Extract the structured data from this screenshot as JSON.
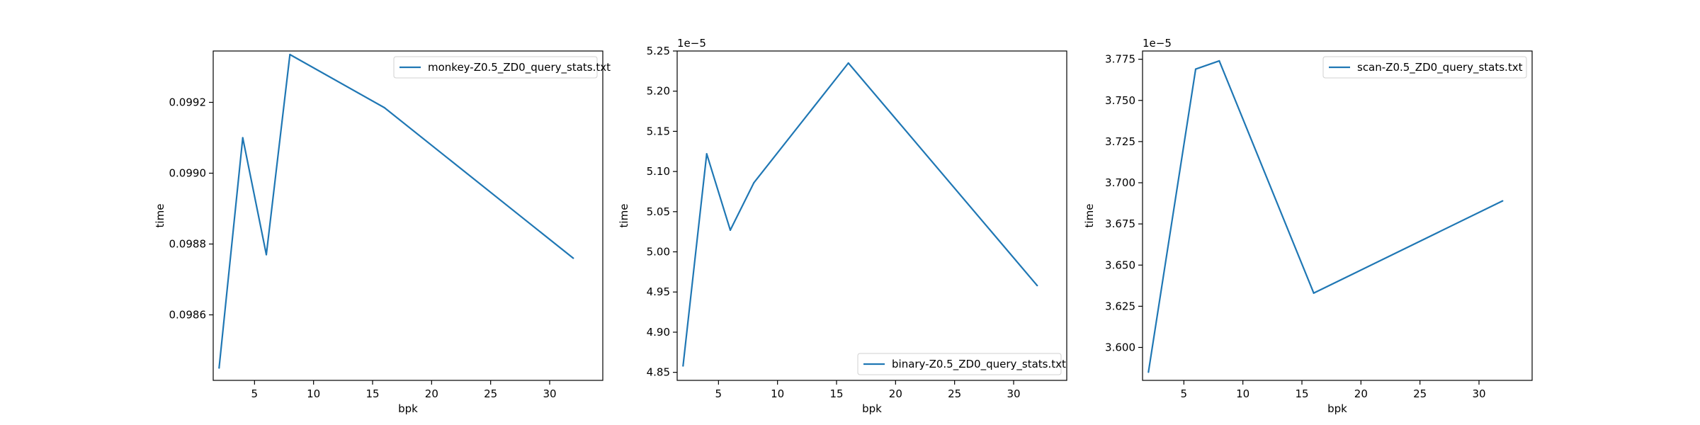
{
  "chart_data": [
    {
      "type": "line",
      "xlabel": "bpk",
      "ylabel": "time",
      "xlim": [
        1.5,
        34.5
      ],
      "ylim": [
        0.098415,
        0.099345
      ],
      "xticks": [
        5,
        10,
        15,
        20,
        25,
        30
      ],
      "yticks": [
        0.0986,
        0.0988,
        0.099,
        0.0992
      ],
      "ytick_decimals": 4,
      "offset_text": "",
      "legend_loc": "upper-right",
      "grid": false,
      "series": [
        {
          "name": "monkey-Z0.5_ZD0_query_stats.txt",
          "color": "#1f77b4",
          "x": [
            2,
            4,
            6,
            8,
            16,
            32
          ],
          "y": [
            0.09845,
            0.0991,
            0.09877,
            0.099335,
            0.099185,
            0.09876
          ]
        }
      ]
    },
    {
      "type": "line",
      "xlabel": "bpk",
      "ylabel": "time",
      "xlim": [
        1.5,
        34.5
      ],
      "ylim": [
        4.84,
        5.25
      ],
      "xticks": [
        5,
        10,
        15,
        20,
        25,
        30
      ],
      "yticks": [
        4.85,
        4.9,
        4.95,
        5.0,
        5.05,
        5.1,
        5.15,
        5.2,
        5.25
      ],
      "ytick_decimals": 2,
      "offset_text": "1e−5",
      "legend_loc": "lower-right",
      "grid": false,
      "series": [
        {
          "name": "binary-Z0.5_ZD0_query_stats.txt",
          "color": "#1f77b4",
          "x": [
            2,
            4,
            6,
            8,
            16,
            32
          ],
          "y": [
            4.858,
            5.122,
            5.027,
            5.086,
            5.235,
            4.958
          ]
        }
      ]
    },
    {
      "type": "line",
      "xlabel": "bpk",
      "ylabel": "time",
      "xlim": [
        1.5,
        34.5
      ],
      "ylim": [
        3.58,
        3.78
      ],
      "xticks": [
        5,
        10,
        15,
        20,
        25,
        30
      ],
      "yticks": [
        3.6,
        3.625,
        3.65,
        3.675,
        3.7,
        3.725,
        3.75,
        3.775
      ],
      "ytick_decimals": 3,
      "offset_text": "1e−5",
      "legend_loc": "upper-right",
      "grid": false,
      "series": [
        {
          "name": "scan-Z0.5_ZD0_query_stats.txt",
          "color": "#1f77b4",
          "x": [
            2,
            6,
            8,
            16,
            32
          ],
          "y": [
            3.585,
            3.769,
            3.774,
            3.633,
            3.689
          ]
        }
      ]
    }
  ]
}
